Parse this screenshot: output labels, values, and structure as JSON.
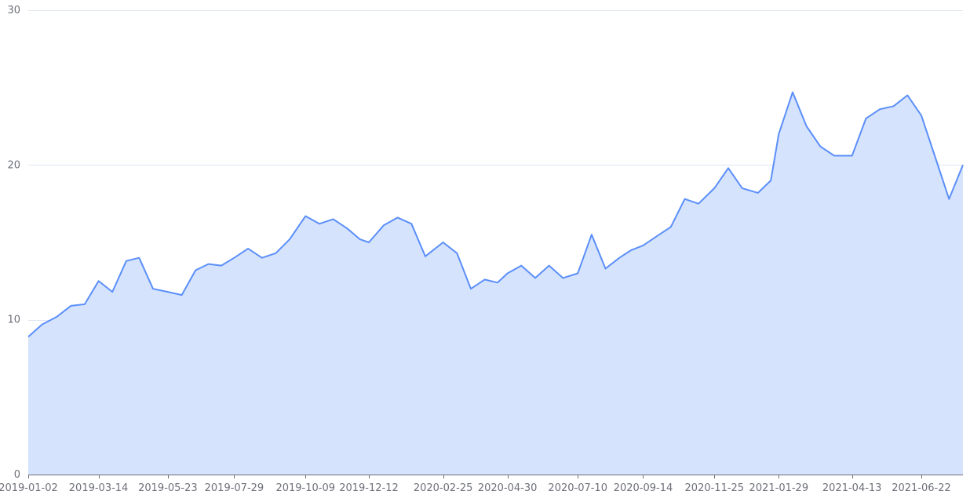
{
  "chart_data": {
    "type": "area",
    "title": "",
    "xlabel": "",
    "ylabel": "",
    "ylim": [
      0,
      30
    ],
    "y_ticks": [
      0,
      10,
      20,
      30
    ],
    "x_tick_labels": [
      "2019-01-02",
      "2019-03-14",
      "2019-05-23",
      "2019-07-29",
      "2019-10-09",
      "2019-12-12",
      "2020-02-25",
      "2020-04-30",
      "2020-07-10",
      "2020-09-14",
      "2020-11-25",
      "2021-01-29",
      "2021-04-13",
      "2021-06-22"
    ],
    "grid": true,
    "legend": "none",
    "colors": {
      "line": "#5b8ff9",
      "area": "#d6e3fd",
      "grid": "#e0e6f1",
      "axis": "#6e7079"
    },
    "series": [
      {
        "x": [
          "2019-01-02",
          "2019-01-16",
          "2019-01-31",
          "2019-02-14",
          "2019-02-28",
          "2019-03-14",
          "2019-03-28",
          "2019-04-11",
          "2019-04-24",
          "2019-05-08",
          "2019-05-23",
          "2019-06-06",
          "2019-06-20",
          "2019-07-03",
          "2019-07-16",
          "2019-07-29",
          "2019-08-12",
          "2019-08-26",
          "2019-09-09",
          "2019-09-23",
          "2019-10-09",
          "2019-10-23",
          "2019-11-06",
          "2019-11-20",
          "2019-12-03",
          "2019-12-12",
          "2019-12-27",
          "2020-01-10",
          "2020-01-24",
          "2020-02-07",
          "2020-02-25",
          "2020-03-10",
          "2020-03-24",
          "2020-04-07",
          "2020-04-20",
          "2020-04-30",
          "2020-05-14",
          "2020-05-28",
          "2020-06-11",
          "2020-06-25",
          "2020-07-10",
          "2020-07-24",
          "2020-08-07",
          "2020-08-21",
          "2020-09-02",
          "2020-09-14",
          "2020-09-28",
          "2020-10-12",
          "2020-10-26",
          "2020-11-09",
          "2020-11-25",
          "2020-12-09",
          "2020-12-23",
          "2021-01-08",
          "2021-01-21",
          "2021-01-29",
          "2021-02-12",
          "2021-02-26",
          "2021-03-12",
          "2021-03-26",
          "2021-04-13",
          "2021-04-27",
          "2021-05-11",
          "2021-05-25",
          "2021-06-08",
          "2021-06-22",
          "2021-07-06",
          "2021-07-20",
          "2021-08-03"
        ],
        "values": [
          8.9,
          9.7,
          10.2,
          10.9,
          11.0,
          12.5,
          11.8,
          13.8,
          14.0,
          12.0,
          11.8,
          11.6,
          13.2,
          13.6,
          13.5,
          14.0,
          14.6,
          14.0,
          14.3,
          15.2,
          16.7,
          16.2,
          16.5,
          15.9,
          15.2,
          15.0,
          16.1,
          16.6,
          16.2,
          14.1,
          15.0,
          14.3,
          12.0,
          12.6,
          12.4,
          13.0,
          13.5,
          12.7,
          13.5,
          12.7,
          13.0,
          15.5,
          13.3,
          14.0,
          14.5,
          14.8,
          15.4,
          16.0,
          17.8,
          17.5,
          18.5,
          19.8,
          18.5,
          18.2,
          19.0,
          22.0,
          24.7,
          22.5,
          21.2,
          20.6,
          20.6,
          23.0,
          23.6,
          23.8,
          24.5,
          23.2,
          20.5,
          17.8,
          20.0
        ]
      }
    ]
  }
}
